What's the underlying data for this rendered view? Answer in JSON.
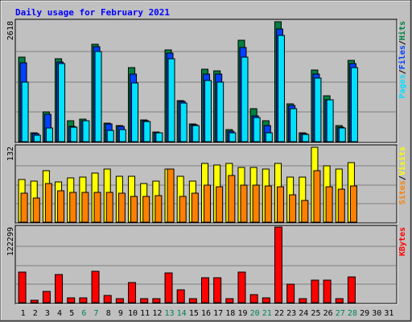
{
  "chart_data": {
    "type": "bar",
    "title": "Daily usage for February 2021",
    "colors": {
      "background": "#c0c0c0",
      "title": "#0000ff",
      "hits": "#008040",
      "files": "#0040ff",
      "pages": "#00e0ff",
      "visits": "#ffff00",
      "sites": "#ff8000",
      "kbytes": "#ff0000",
      "weekday_label": "#000000",
      "weekend_label": "#00805c"
    },
    "days": [
      "1",
      "2",
      "3",
      "4",
      "5",
      "6",
      "7",
      "8",
      "9",
      "10",
      "11",
      "12",
      "13",
      "14",
      "15",
      "16",
      "17",
      "18",
      "19",
      "20",
      "21",
      "22",
      "23",
      "24",
      "25",
      "26",
      "27",
      "28",
      "29",
      "30",
      "31"
    ],
    "weekend_days": [
      "6",
      "7",
      "13",
      "14",
      "20",
      "21",
      "27",
      "28"
    ],
    "panels": [
      {
        "id": "hits-files-pages",
        "max_label": "2618",
        "max_value": 2618,
        "legend": [
          {
            "text": "Pages",
            "color_key": "pages"
          },
          {
            "text": "/",
            "color_key": "weekday_label"
          },
          {
            "text": "Files",
            "color_key": "files"
          },
          {
            "text": "/",
            "color_key": "weekday_label"
          },
          {
            "text": "Hits",
            "color_key": "hits"
          }
        ],
        "series": [
          {
            "name": "Hits",
            "color_key": "hits",
            "values": [
              1840,
              190,
              640,
              1800,
              460,
              490,
              2120,
              410,
              350,
              1600,
              470,
              210,
              1990,
              890,
              380,
              1570,
              1540,
              270,
              2200,
              710,
              450,
              2600,
              820,
              190,
              1560,
              990,
              350,
              1770,
              0,
              0,
              0
            ]
          },
          {
            "name": "Files",
            "color_key": "files",
            "values": [
              1710,
              170,
              600,
              1730,
              330,
              460,
              2060,
              390,
              330,
              1460,
              450,
              200,
              1920,
              870,
              360,
              1460,
              1460,
              230,
              2040,
              560,
              350,
              2450,
              790,
              170,
              1460,
              900,
              320,
              1690,
              0,
              0,
              0
            ]
          },
          {
            "name": "Pages",
            "color_key": "pages",
            "values": [
              1300,
              140,
              300,
              1700,
              320,
              450,
              1950,
              250,
              270,
              1270,
              430,
              190,
              1790,
              840,
              350,
              1330,
              1300,
              190,
              1840,
              530,
              200,
              2300,
              720,
              150,
              1380,
              900,
              300,
              1600,
              0,
              0,
              0
            ]
          }
        ]
      },
      {
        "id": "visits-sites",
        "max_label": "132",
        "max_value": 132,
        "legend": [
          {
            "text": "Sites",
            "color_key": "sites"
          },
          {
            "text": "/",
            "color_key": "weekday_label"
          },
          {
            "text": "Visits",
            "color_key": "visits"
          }
        ],
        "series": [
          {
            "name": "Visits",
            "color_key": "visits",
            "values": [
              75,
              72,
              90,
              70,
              77,
              78,
              86,
              92,
              80,
              80,
              68,
              72,
              92,
              80,
              72,
              103,
              100,
              102,
              95,
              95,
              93,
              103,
              78,
              78,
              130,
              98,
              92,
              104,
              0,
              0,
              0
            ]
          },
          {
            "name": "Sites",
            "color_key": "sites",
            "values": [
              50,
              42,
              67,
              55,
              52,
              52,
              52,
              52,
              50,
              45,
              45,
              46,
              92,
              45,
              50,
              64,
              62,
              82,
              64,
              64,
              63,
              62,
              48,
              38,
              90,
              62,
              57,
              63,
              0,
              0,
              0
            ]
          }
        ]
      },
      {
        "id": "kbytes",
        "max_label": "122299",
        "max_value": 122299,
        "legend": [
          {
            "text": "KBytes",
            "color_key": "kbytes"
          }
        ],
        "series": [
          {
            "name": "KBytes",
            "color_key": "kbytes",
            "values": [
              49000,
              4000,
              18000,
              45000,
              8000,
              8000,
              51000,
              12000,
              6000,
              33000,
              7000,
              6000,
              48000,
              21000,
              6000,
              40000,
              40000,
              7000,
              49000,
              13000,
              8000,
              122299,
              30000,
              7000,
              37000,
              36000,
              7000,
              42000,
              0,
              0,
              0
            ]
          }
        ]
      }
    ]
  }
}
